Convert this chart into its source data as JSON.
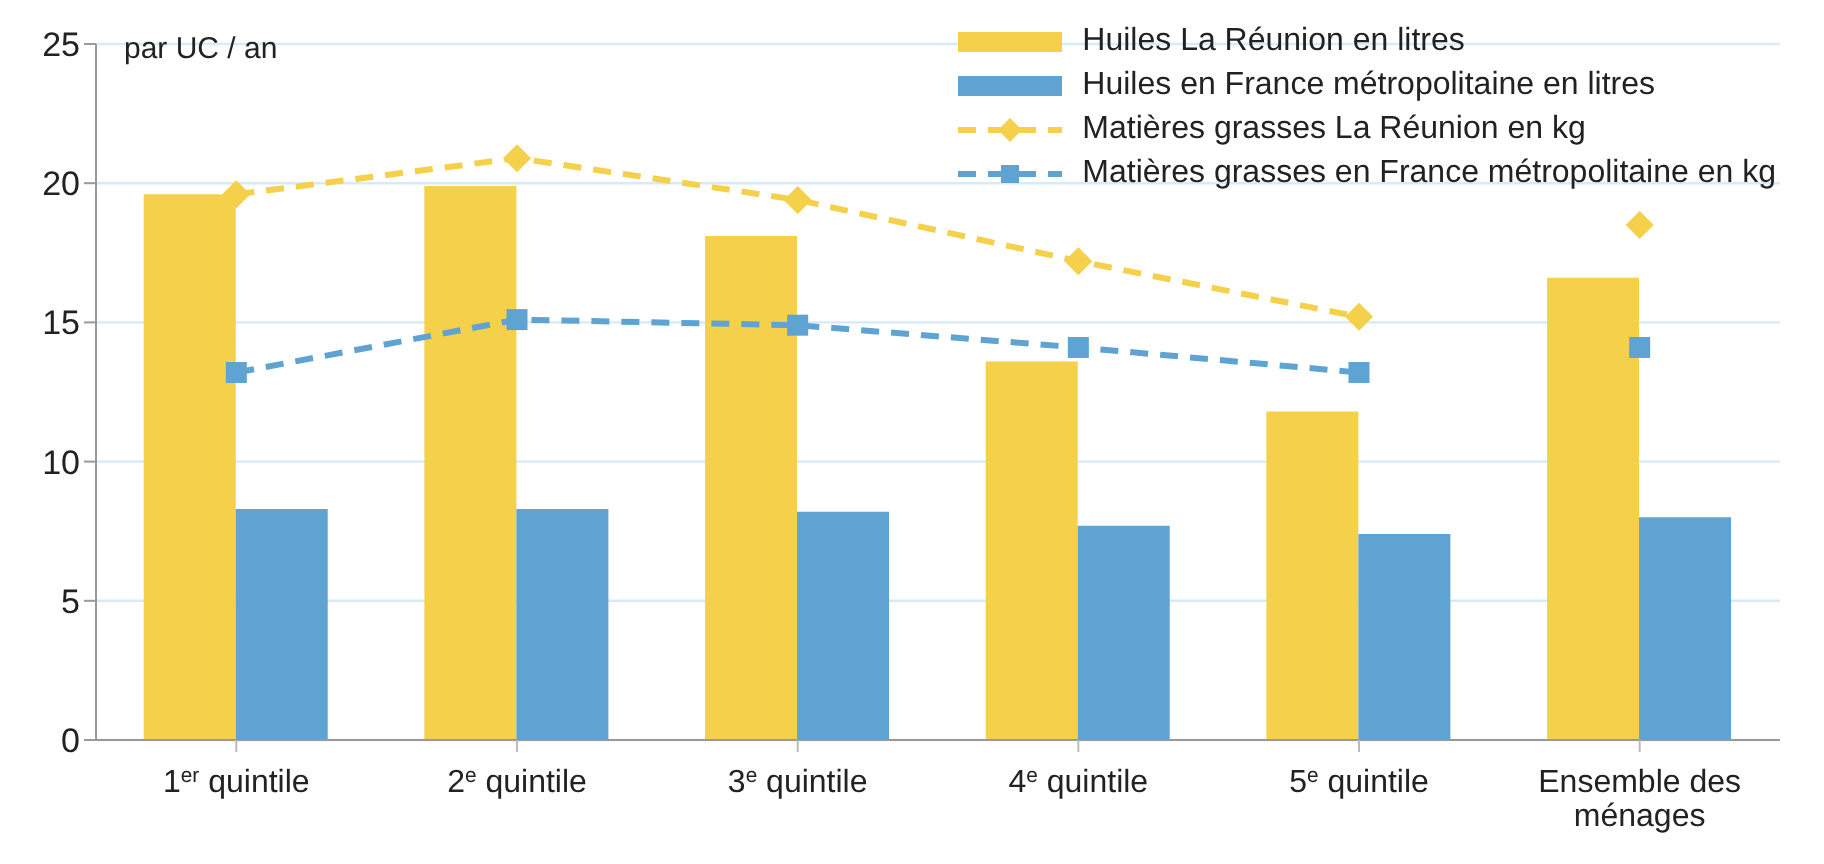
{
  "chart_data": {
    "type": "bar",
    "ylabel": "par UC / an",
    "categories": [
      "1$^{er}$ quintile",
      "2$^{e}$ quintile",
      "3$^{e}$ quintile",
      "4$^{e}$ quintile",
      "5$^{e}$ quintile",
      "Ensemble des ménages"
    ],
    "series": [
      {
        "name": "Huiles La Réunion en litres",
        "color": "#f5d04a",
        "values": [
          19.6,
          19.9,
          18.1,
          13.6,
          11.8,
          16.6
        ]
      },
      {
        "name": "Huiles en France métropolitaine en litres",
        "color": "#5ea3d2",
        "values": [
          8.3,
          8.3,
          8.2,
          7.7,
          7.4,
          8.0
        ]
      },
      {
        "name": "Matières grasses La Réunion en kg",
        "type": "line",
        "color": "#f5d04a",
        "line_style": "dashed",
        "marker": "diamond",
        "values": [
          19.6,
          20.9,
          19.4,
          17.2,
          15.2,
          null
        ]
      },
      {
        "name": "Matières grasses en France métropolitaine en kg",
        "type": "line",
        "color": "#5ea3d2",
        "line_style": "dashed",
        "marker": "square",
        "values": [
          13.2,
          15.1,
          14.9,
          14.1,
          13.2,
          null
        ]
      },
      {
        "type": "scatter",
        "color": "#f5d04a",
        "marker": "diamond",
        "values": [
          null,
          null,
          null,
          null,
          null,
          18.5
        ]
      },
      {
        "type": "scatter",
        "color": "#5ea3d2",
        "marker": "square",
        "values": [
          null,
          null,
          null,
          null,
          null,
          14.1
        ]
      }
    ],
    "ylim": [
      0,
      25
    ],
    "yticks": [
      0,
      5,
      10,
      15,
      20,
      25
    ],
    "grid": "y",
    "legend": "top right"
  }
}
